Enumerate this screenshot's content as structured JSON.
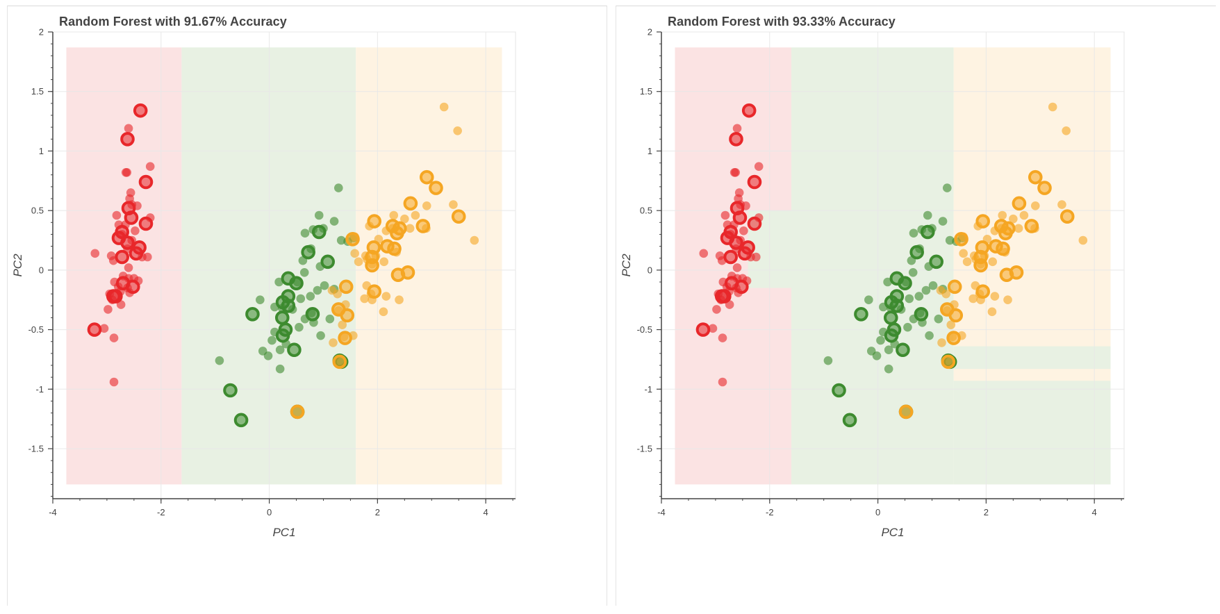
{
  "colors": {
    "setosa": "#e8272a",
    "versicolor": "#3d8b2f",
    "virginica": "#f5a623",
    "setosa_region": "#fbe3e3",
    "versicolor_region": "#e8f1e3",
    "virginica_region": "#fef3e2",
    "grid": "#e8e8e8",
    "axis": "#444444"
  },
  "chart_data": [
    {
      "type": "scatter",
      "title": "Random Forest with 91.67% Accuracy",
      "xlabel": "PC1",
      "ylabel": "PC2",
      "xlim": [
        -4.0,
        4.55
      ],
      "ylim": [
        -1.92,
        2.0
      ],
      "xticks": [
        -4,
        -2,
        0,
        2,
        4
      ],
      "xtick_labels": [
        "-4",
        "-2",
        "0",
        "2",
        "4"
      ],
      "yticks": [
        -1.5,
        -1,
        -0.5,
        0,
        0.5,
        1,
        1.5,
        2
      ],
      "ytick_labels": [
        "-1.5",
        "-1",
        "-0.5",
        "0",
        "0.5",
        "1",
        "1.5",
        "2"
      ],
      "grid": true,
      "regions": [
        {
          "class": "setosa",
          "x": [
            -3.75,
            -1.62
          ],
          "y": [
            -1.8,
            1.87
          ]
        },
        {
          "class": "versicolor",
          "x": [
            -1.62,
            1.6
          ],
          "y": [
            -1.8,
            1.87
          ]
        },
        {
          "class": "virginica",
          "x": [
            1.6,
            4.3
          ],
          "y": [
            -1.8,
            1.87
          ]
        }
      ]
    },
    {
      "type": "scatter",
      "title": "Random Forest with 93.33% Accuracy",
      "xlabel": "PC1",
      "ylabel": "PC2",
      "xlim": [
        -4.0,
        4.55
      ],
      "ylim": [
        -1.92,
        2.0
      ],
      "xticks": [
        -4,
        -2,
        0,
        2,
        4
      ],
      "xtick_labels": [
        "-4",
        "-2",
        "0",
        "2",
        "4"
      ],
      "yticks": [
        -1.5,
        -1,
        -0.5,
        0,
        0.5,
        1,
        1.5,
        2
      ],
      "ytick_labels": [
        "-1.5",
        "-1",
        "-0.5",
        "0",
        "0.5",
        "1",
        "1.5",
        "2"
      ],
      "grid": true,
      "regions": [
        {
          "class": "setosa",
          "x": [
            -3.75,
            -1.6
          ],
          "y": [
            -1.8,
            1.87
          ]
        },
        {
          "class": "versicolor",
          "x": [
            -1.6,
            1.4
          ],
          "y": [
            -1.8,
            1.87
          ]
        },
        {
          "class": "virginica",
          "x": [
            1.4,
            4.3
          ],
          "y": [
            -1.8,
            1.87
          ]
        },
        {
          "class": "versicolor",
          "x": [
            -2.4,
            -1.6
          ],
          "y": [
            -0.15,
            0.5
          ]
        },
        {
          "class": "versicolor",
          "x": [
            1.4,
            4.3
          ],
          "y": [
            -0.83,
            -0.64
          ]
        },
        {
          "class": "versicolor",
          "x": [
            1.4,
            4.3
          ],
          "y": [
            -1.8,
            -0.93
          ]
        }
      ]
    }
  ],
  "points": {
    "setosa_train": [
      [
        -2.6,
        1.19
      ],
      [
        -2.63,
        0.82
      ],
      [
        -2.65,
        0.82
      ],
      [
        -2.2,
        0.87
      ],
      [
        -2.56,
        0.65
      ],
      [
        -2.58,
        0.6
      ],
      [
        -2.54,
        0.55
      ],
      [
        -2.44,
        0.54
      ],
      [
        -2.2,
        0.44
      ],
      [
        -2.78,
        0.38
      ],
      [
        -2.72,
        0.3
      ],
      [
        -2.62,
        0.18
      ],
      [
        -2.54,
        0.25
      ],
      [
        -2.92,
        0.12
      ],
      [
        -3.22,
        0.14
      ],
      [
        -2.88,
        0.08
      ],
      [
        -2.6,
        0.02
      ],
      [
        -2.35,
        0.11
      ],
      [
        -2.25,
        0.11
      ],
      [
        -2.7,
        -0.05
      ],
      [
        -2.5,
        -0.07
      ],
      [
        -2.79,
        -0.14
      ],
      [
        -2.86,
        -0.1
      ],
      [
        -2.75,
        -0.18
      ],
      [
        -2.62,
        -0.15
      ],
      [
        -2.58,
        -0.19
      ],
      [
        -2.9,
        -0.25
      ],
      [
        -2.74,
        -0.29
      ],
      [
        -2.95,
        -0.2
      ],
      [
        -2.98,
        -0.33
      ],
      [
        -3.05,
        -0.49
      ],
      [
        -2.87,
        -0.57
      ],
      [
        -2.87,
        -0.94
      ],
      [
        -2.6,
        -0.07
      ],
      [
        -2.42,
        -0.09
      ],
      [
        -2.66,
        0.38
      ],
      [
        -2.48,
        0.33
      ],
      [
        -2.82,
        0.46
      ]
    ],
    "setosa_test": [
      [
        -2.38,
        1.34
      ],
      [
        -2.62,
        1.1
      ],
      [
        -2.28,
        0.74
      ],
      [
        -2.6,
        0.52
      ],
      [
        -2.55,
        0.44
      ],
      [
        -2.28,
        0.39
      ],
      [
        -2.72,
        0.32
      ],
      [
        -2.78,
        0.27
      ],
      [
        -2.62,
        0.23
      ],
      [
        -2.4,
        0.19
      ],
      [
        -2.46,
        0.14
      ],
      [
        -2.72,
        0.11
      ],
      [
        -2.7,
        -0.11
      ],
      [
        -2.52,
        -0.14
      ],
      [
        -2.84,
        -0.22
      ],
      [
        -2.88,
        -0.22
      ],
      [
        -3.23,
        -0.5
      ]
    ],
    "versicolor_train": [
      [
        1.28,
        0.69
      ],
      [
        0.92,
        0.46
      ],
      [
        1.2,
        0.41
      ],
      [
        1.0,
        0.35
      ],
      [
        0.81,
        0.34
      ],
      [
        0.66,
        0.31
      ],
      [
        1.33,
        0.25
      ],
      [
        1.45,
        0.24
      ],
      [
        1.56,
        0.27
      ],
      [
        0.77,
        0.18
      ],
      [
        0.62,
        0.08
      ],
      [
        0.94,
        0.03
      ],
      [
        0.65,
        -0.02
      ],
      [
        0.52,
        -0.1
      ],
      [
        0.18,
        -0.1
      ],
      [
        0.89,
        -0.17
      ],
      [
        1.02,
        -0.13
      ],
      [
        1.2,
        -0.16
      ],
      [
        0.76,
        -0.22
      ],
      [
        0.58,
        -0.24
      ],
      [
        -0.17,
        -0.25
      ],
      [
        0.1,
        -0.31
      ],
      [
        0.24,
        -0.32
      ],
      [
        0.43,
        -0.33
      ],
      [
        0.78,
        -0.36
      ],
      [
        0.66,
        -0.41
      ],
      [
        0.55,
        -0.48
      ],
      [
        0.82,
        -0.44
      ],
      [
        1.12,
        -0.41
      ],
      [
        0.1,
        -0.52
      ],
      [
        0.95,
        -0.55
      ],
      [
        0.05,
        -0.59
      ],
      [
        0.31,
        -0.62
      ],
      [
        -0.12,
        -0.68
      ],
      [
        -0.02,
        -0.72
      ],
      [
        0.2,
        -0.67
      ],
      [
        0.2,
        -0.83
      ],
      [
        -0.92,
        -0.76
      ]
    ],
    "versicolor_test": [
      [
        0.92,
        0.32
      ],
      [
        0.72,
        0.15
      ],
      [
        1.08,
        0.07
      ],
      [
        0.35,
        -0.07
      ],
      [
        0.5,
        -0.11
      ],
      [
        0.35,
        -0.22
      ],
      [
        0.25,
        -0.27
      ],
      [
        0.35,
        -0.3
      ],
      [
        -0.31,
        -0.37
      ],
      [
        0.8,
        -0.37
      ],
      [
        0.24,
        -0.4
      ],
      [
        0.3,
        -0.5
      ],
      [
        0.25,
        -0.55
      ],
      [
        0.46,
        -0.67
      ],
      [
        1.3,
        -0.76
      ],
      [
        1.33,
        -0.77
      ],
      [
        -0.72,
        -1.01
      ],
      [
        -0.52,
        -1.26
      ],
      [
        0.52,
        -1.19
      ]
    ],
    "virginica_train": [
      [
        3.23,
        1.37
      ],
      [
        3.48,
        1.17
      ],
      [
        3.4,
        0.55
      ],
      [
        3.79,
        0.25
      ],
      [
        2.91,
        0.54
      ],
      [
        2.7,
        0.46
      ],
      [
        2.9,
        0.35
      ],
      [
        2.3,
        0.46
      ],
      [
        2.5,
        0.43
      ],
      [
        2.28,
        0.35
      ],
      [
        1.85,
        0.37
      ],
      [
        2.16,
        0.33
      ],
      [
        1.58,
        0.28
      ],
      [
        2.02,
        0.26
      ],
      [
        2.6,
        0.35
      ],
      [
        1.97,
        0.12
      ],
      [
        1.78,
        0.12
      ],
      [
        1.81,
        0.09
      ],
      [
        1.65,
        0.07
      ],
      [
        2.35,
        0.15
      ],
      [
        1.9,
        0.05
      ],
      [
        2.12,
        0.07
      ],
      [
        1.58,
        0.14
      ],
      [
        1.16,
        -0.17
      ],
      [
        1.8,
        -0.13
      ],
      [
        2.16,
        -0.22
      ],
      [
        1.88,
        -0.2
      ],
      [
        2.4,
        -0.25
      ],
      [
        1.41,
        -0.29
      ],
      [
        1.26,
        -0.2
      ],
      [
        1.35,
        -0.46
      ],
      [
        1.55,
        -0.55
      ],
      [
        1.18,
        -0.61
      ],
      [
        1.38,
        -0.56
      ],
      [
        1.28,
        -0.34
      ],
      [
        1.76,
        -0.24
      ],
      [
        2.11,
        -0.35
      ],
      [
        1.9,
        -0.25
      ]
    ],
    "virginica_test": [
      [
        2.91,
        0.78
      ],
      [
        3.08,
        0.69
      ],
      [
        2.61,
        0.56
      ],
      [
        3.5,
        0.45
      ],
      [
        1.94,
        0.41
      ],
      [
        2.28,
        0.37
      ],
      [
        2.84,
        0.37
      ],
      [
        2.41,
        0.35
      ],
      [
        2.36,
        0.31
      ],
      [
        1.54,
        0.26
      ],
      [
        2.18,
        0.2
      ],
      [
        1.93,
        0.19
      ],
      [
        2.31,
        0.18
      ],
      [
        1.9,
        0.11
      ],
      [
        1.9,
        0.04
      ],
      [
        2.56,
        -0.02
      ],
      [
        2.38,
        -0.04
      ],
      [
        1.42,
        -0.14
      ],
      [
        1.94,
        -0.18
      ],
      [
        1.28,
        -0.33
      ],
      [
        1.44,
        -0.38
      ],
      [
        1.4,
        -0.57
      ],
      [
        1.3,
        -0.77
      ],
      [
        0.52,
        -1.19
      ]
    ]
  }
}
